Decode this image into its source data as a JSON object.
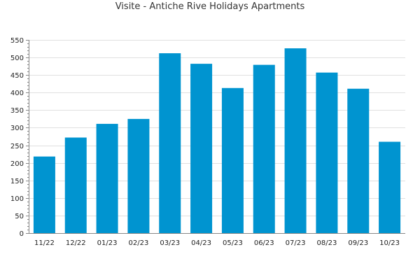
{
  "chart_data": {
    "type": "bar",
    "title": "Visite - Antiche Rive Holidays Apartments",
    "xlabel": "",
    "ylabel": "",
    "categories": [
      "11/22",
      "12/22",
      "01/23",
      "02/23",
      "03/23",
      "04/23",
      "05/23",
      "06/23",
      "07/23",
      "08/23",
      "09/23",
      "10/23"
    ],
    "values": [
      218,
      272,
      311,
      325,
      512,
      482,
      413,
      479,
      526,
      457,
      411,
      260
    ],
    "ylim": [
      0,
      550
    ],
    "yticks": [
      0,
      50,
      100,
      150,
      200,
      250,
      300,
      350,
      400,
      450,
      500,
      550
    ],
    "grid": true,
    "legend": "none",
    "bar_color": "#0094d0",
    "grid_color": "#e0e0e0",
    "axis_color": "#888888"
  }
}
